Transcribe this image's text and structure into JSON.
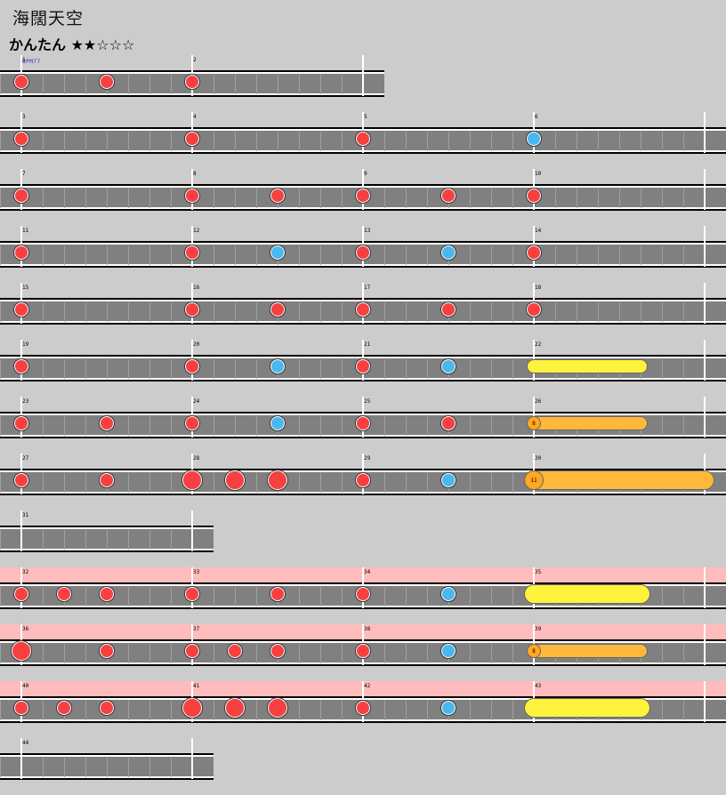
{
  "song": {
    "title": "海闊天空",
    "difficulty": "かんたん ★★☆☆☆",
    "bpm_label": "BPM77"
  },
  "rows": [
    {
      "gogo": false,
      "beats": 2,
      "measures": [
        "1",
        "2"
      ],
      "notes": [
        {
          "t": "don",
          "b": 0
        },
        {
          "t": "don",
          "b": 0.5
        },
        {
          "t": "don",
          "b": 1
        }
      ]
    },
    {
      "gogo": false,
      "beats": 4,
      "measures": [
        "3",
        "4",
        "5",
        "6"
      ],
      "notes": [
        {
          "t": "don",
          "b": 0
        },
        {
          "t": "don",
          "b": 1
        },
        {
          "t": "don",
          "b": 2
        },
        {
          "t": "ka",
          "b": 3
        }
      ]
    },
    {
      "gogo": false,
      "beats": 4,
      "measures": [
        "7",
        "8",
        "9",
        "10"
      ],
      "notes": [
        {
          "t": "don",
          "b": 0
        },
        {
          "t": "don",
          "b": 1
        },
        {
          "t": "don",
          "b": 1.5
        },
        {
          "t": "don",
          "b": 2
        },
        {
          "t": "don",
          "b": 2.5
        },
        {
          "t": "don",
          "b": 3
        }
      ]
    },
    {
      "gogo": false,
      "beats": 4,
      "measures": [
        "11",
        "12",
        "13",
        "14"
      ],
      "notes": [
        {
          "t": "don",
          "b": 0
        },
        {
          "t": "don",
          "b": 1
        },
        {
          "t": "ka",
          "b": 1.5
        },
        {
          "t": "don",
          "b": 2
        },
        {
          "t": "ka",
          "b": 2.5
        },
        {
          "t": "don",
          "b": 3
        }
      ]
    },
    {
      "gogo": false,
      "beats": 4,
      "measures": [
        "15",
        "16",
        "17",
        "18"
      ],
      "notes": [
        {
          "t": "don",
          "b": 0
        },
        {
          "t": "don",
          "b": 1
        },
        {
          "t": "don",
          "b": 1.5
        },
        {
          "t": "don",
          "b": 2
        },
        {
          "t": "don",
          "b": 2.5
        },
        {
          "t": "don",
          "b": 3
        }
      ]
    },
    {
      "gogo": false,
      "beats": 4,
      "measures": [
        "19",
        "20",
        "21",
        "22"
      ],
      "notes": [
        {
          "t": "don",
          "b": 0
        },
        {
          "t": "don",
          "b": 1
        },
        {
          "t": "ka",
          "b": 1.5
        },
        {
          "t": "don",
          "b": 2
        },
        {
          "t": "ka",
          "b": 2.5
        },
        {
          "t": "roll",
          "b": 3,
          "end": 3.625
        }
      ]
    },
    {
      "gogo": false,
      "beats": 4,
      "measures": [
        "23",
        "24",
        "25",
        "26"
      ],
      "notes": [
        {
          "t": "don",
          "b": 0
        },
        {
          "t": "don",
          "b": 0.5
        },
        {
          "t": "don",
          "b": 1
        },
        {
          "t": "ka",
          "b": 1.5
        },
        {
          "t": "don",
          "b": 2
        },
        {
          "t": "don",
          "b": 2.5
        },
        {
          "t": "balloon",
          "b": 3,
          "end": 3.625,
          "count": "8"
        }
      ]
    },
    {
      "gogo": false,
      "beats": 4,
      "measures": [
        "27",
        "28",
        "29",
        "30"
      ],
      "notes": [
        {
          "t": "don",
          "b": 0
        },
        {
          "t": "don",
          "b": 0.5
        },
        {
          "t": "DON",
          "b": 1
        },
        {
          "t": "DON",
          "b": 1.25
        },
        {
          "t": "DON",
          "b": 1.5
        },
        {
          "t": "don",
          "b": 2
        },
        {
          "t": "ka",
          "b": 2.5
        },
        {
          "t": "balloonbig",
          "b": 3,
          "end": 4,
          "count": "11"
        }
      ]
    },
    {
      "gogo": false,
      "beats": 1,
      "measures": [
        "31"
      ],
      "notes": []
    },
    {
      "gogo": true,
      "beats": 4,
      "measures": [
        "32",
        "33",
        "34",
        "35"
      ],
      "notes": [
        {
          "t": "don",
          "b": 0
        },
        {
          "t": "don",
          "b": 0.25
        },
        {
          "t": "don",
          "b": 0.5
        },
        {
          "t": "don",
          "b": 1
        },
        {
          "t": "don",
          "b": 1.5
        },
        {
          "t": "don",
          "b": 2
        },
        {
          "t": "ka",
          "b": 2.5
        },
        {
          "t": "rollbig",
          "b": 3,
          "end": 3.625
        }
      ]
    },
    {
      "gogo": true,
      "beats": 4,
      "measures": [
        "36",
        "37",
        "38",
        "39"
      ],
      "notes": [
        {
          "t": "DON",
          "b": 0
        },
        {
          "t": "don",
          "b": 0.5
        },
        {
          "t": "don",
          "b": 1
        },
        {
          "t": "don",
          "b": 1.25
        },
        {
          "t": "don",
          "b": 1.5
        },
        {
          "t": "don",
          "b": 2
        },
        {
          "t": "ka",
          "b": 2.5
        },
        {
          "t": "balloon",
          "b": 3,
          "end": 3.625,
          "count": "8"
        }
      ]
    },
    {
      "gogo": true,
      "beats": 4,
      "measures": [
        "40",
        "41",
        "42",
        "43"
      ],
      "notes": [
        {
          "t": "don",
          "b": 0
        },
        {
          "t": "don",
          "b": 0.25
        },
        {
          "t": "don",
          "b": 0.5
        },
        {
          "t": "DON",
          "b": 1
        },
        {
          "t": "DON",
          "b": 1.25
        },
        {
          "t": "DON",
          "b": 1.5
        },
        {
          "t": "don",
          "b": 2
        },
        {
          "t": "ka",
          "b": 2.5
        },
        {
          "t": "rollbig",
          "b": 3,
          "end": 3.625
        }
      ]
    },
    {
      "gogo": false,
      "beats": 1,
      "measures": [
        "44"
      ],
      "notes": []
    }
  ],
  "colors": {
    "don": "#f84040",
    "ka": "#4ab8f0",
    "roll": "#fff23c",
    "balloon": "#ffb83a",
    "gogo": "#ffbcbc",
    "lane": "#808080"
  }
}
